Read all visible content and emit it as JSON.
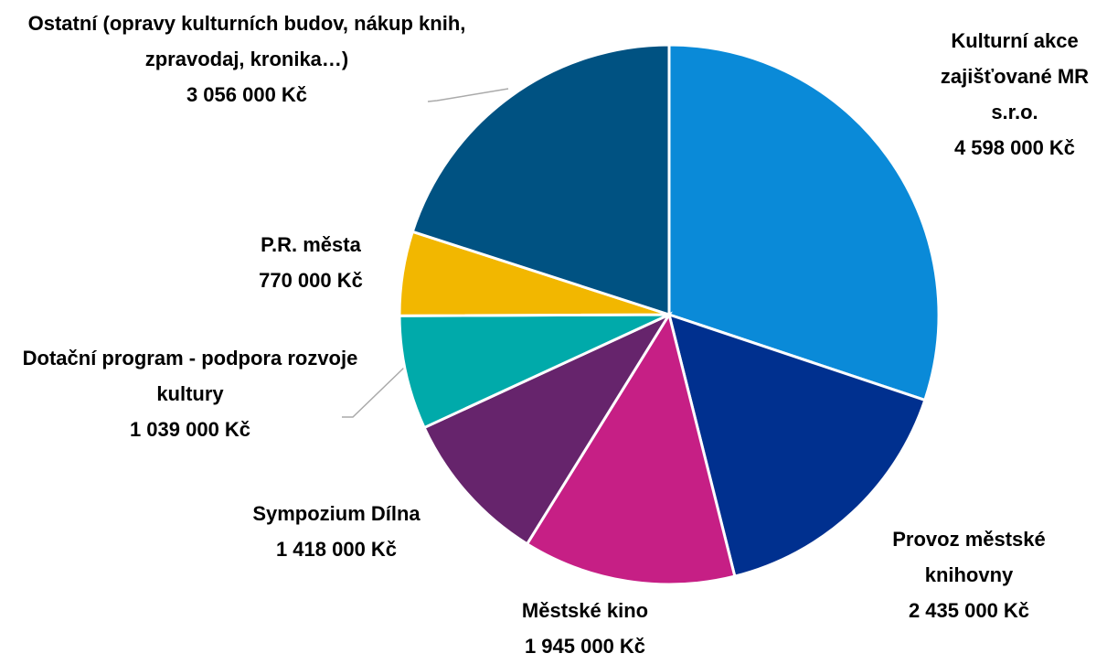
{
  "chart_data": {
    "type": "pie",
    "categories": [
      "Kulturní akce zajišťované MR s.r.o.",
      "Provoz městské knihovny",
      "Městské kino",
      "Sympozium Dílna",
      "Dotační program - podpora rozvoje kultury",
      "P.R. města",
      "Ostatní (opravy kulturních budov, nákup knih, zpravodaj, kronika…)"
    ],
    "values": [
      4598000,
      2435000,
      1945000,
      1418000,
      1039000,
      770000,
      3056000
    ],
    "value_labels": [
      "4 598 000 Kč",
      "2 435 000 Kč",
      "1 945 000 Kč",
      "1 418 000 Kč",
      "1 039 000 Kč",
      "770 000 Kč",
      "3 056 000 Kč"
    ],
    "colors": [
      "#0a8ad8",
      "#00308f",
      "#c61f85",
      "#66246c",
      "#00aaaa",
      "#f2b700",
      "#005282"
    ]
  }
}
